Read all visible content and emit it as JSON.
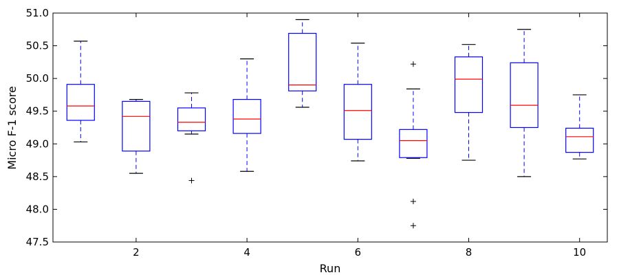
{
  "chart_data": {
    "type": "box",
    "xlabel": "Run",
    "ylabel": "Micro F-1 score",
    "xlim": [
      0.5,
      10.5
    ],
    "ylim": [
      47.5,
      51.0
    ],
    "x_ticks": [
      2,
      4,
      6,
      8,
      10
    ],
    "y_ticks": [
      47.5,
      48.0,
      48.5,
      49.0,
      49.5,
      50.0,
      50.5,
      51.0
    ],
    "grid": false,
    "colors": {
      "box": "#0000ff",
      "median": "#ff0000",
      "whisker": "#0000ff",
      "cap": "#000000",
      "flier": "#000000"
    },
    "boxes": [
      {
        "run": 1,
        "q1": 49.36,
        "median": 49.58,
        "q3": 49.91,
        "whisker_low": 49.03,
        "whisker_high": 50.57,
        "fliers": []
      },
      {
        "run": 2,
        "q1": 48.89,
        "median": 49.42,
        "q3": 49.65,
        "whisker_low": 48.55,
        "whisker_high": 49.68,
        "fliers": []
      },
      {
        "run": 3,
        "q1": 49.2,
        "median": 49.33,
        "q3": 49.55,
        "whisker_low": 49.15,
        "whisker_high": 49.78,
        "fliers": [
          48.44
        ]
      },
      {
        "run": 4,
        "q1": 49.16,
        "median": 49.38,
        "q3": 49.68,
        "whisker_low": 48.58,
        "whisker_high": 50.3,
        "fliers": []
      },
      {
        "run": 5,
        "q1": 49.81,
        "median": 49.9,
        "q3": 50.69,
        "whisker_low": 49.56,
        "whisker_high": 50.9,
        "fliers": []
      },
      {
        "run": 6,
        "q1": 49.07,
        "median": 49.51,
        "q3": 49.91,
        "whisker_low": 48.74,
        "whisker_high": 50.54,
        "fliers": []
      },
      {
        "run": 7,
        "q1": 48.79,
        "median": 49.05,
        "q3": 49.22,
        "whisker_low": 48.78,
        "whisker_high": 49.84,
        "fliers": [
          50.22,
          48.12,
          47.75
        ]
      },
      {
        "run": 8,
        "q1": 49.48,
        "median": 49.99,
        "q3": 50.33,
        "whisker_low": 48.75,
        "whisker_high": 50.52,
        "fliers": []
      },
      {
        "run": 9,
        "q1": 49.25,
        "median": 49.59,
        "q3": 50.24,
        "whisker_low": 48.5,
        "whisker_high": 50.75,
        "fliers": []
      },
      {
        "run": 10,
        "q1": 48.87,
        "median": 49.11,
        "q3": 49.24,
        "whisker_low": 48.77,
        "whisker_high": 49.75,
        "fliers": []
      }
    ]
  },
  "axis_text": {
    "x_ticks": [
      "2",
      "4",
      "6",
      "8",
      "10"
    ],
    "y_ticks": [
      "47.5",
      "48.0",
      "48.5",
      "49.0",
      "49.5",
      "50.0",
      "50.5",
      "51.0"
    ]
  }
}
